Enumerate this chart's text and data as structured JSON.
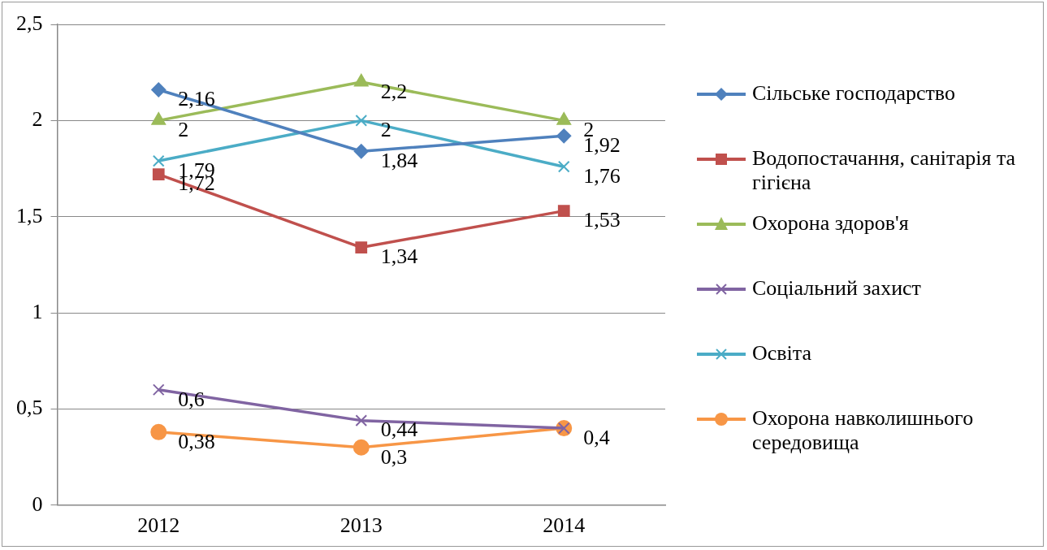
{
  "chart_data": {
    "type": "line",
    "categories": [
      "2012",
      "2013",
      "2014"
    ],
    "series": [
      {
        "name": "Сільське господарство",
        "color": "#4f81bd",
        "marker": "diamond",
        "values": [
          2.16,
          1.84,
          1.92
        ],
        "value_labels": [
          "2,16",
          "1,84",
          "1,92"
        ]
      },
      {
        "name": "Водопостачання, санітарія та гігієна",
        "color": "#c0504d",
        "marker": "square",
        "values": [
          1.72,
          1.34,
          1.53
        ],
        "value_labels": [
          "1,72",
          "1,34",
          "1,53"
        ]
      },
      {
        "name": "Охорона здоров'я",
        "color": "#9bbb59",
        "marker": "triangle",
        "values": [
          2,
          2.2,
          2
        ],
        "value_labels": [
          "2",
          "2,2",
          "2"
        ]
      },
      {
        "name": "Соціальний захист",
        "color": "#8064a2",
        "marker": "cross",
        "values": [
          0.6,
          0.44,
          0.4
        ],
        "value_labels": [
          "0,6",
          "0,44",
          null
        ]
      },
      {
        "name": "Освіта",
        "color": "#4bacc6",
        "marker": "cross",
        "values": [
          1.79,
          2,
          1.76
        ],
        "value_labels": [
          "1,79",
          "2",
          "1,76"
        ]
      },
      {
        "name": "Охорона навколишнього середовища",
        "color": "#f79646",
        "marker": "circle",
        "values": [
          0.38,
          0.3,
          0.4
        ],
        "value_labels": [
          "0,38",
          "0,3",
          "0,4"
        ]
      }
    ],
    "ylim": [
      0,
      2.5
    ],
    "yticks": [
      0,
      {
        "value": 0.5,
        "label": "0,5"
      },
      1,
      {
        "value": 1.5,
        "label": "1,5"
      },
      2,
      {
        "value": 2.5,
        "label": "2,5"
      }
    ],
    "grid": "y",
    "legend": "right",
    "line_style": "solid"
  }
}
